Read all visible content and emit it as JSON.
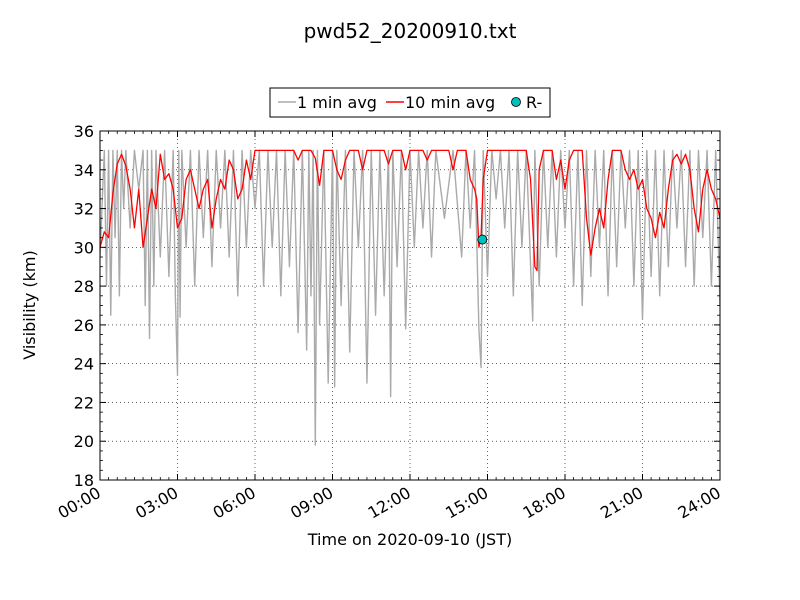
{
  "chart_data": {
    "type": "line",
    "title": "pwd52_20200910.txt",
    "xlabel": "Time on 2020-09-10 (JST)",
    "ylabel": "Visibility (km)",
    "xlim": [
      "00:00",
      "24:00"
    ],
    "ylim": [
      18,
      36
    ],
    "x_ticks": [
      "00:00",
      "03:00",
      "06:00",
      "09:00",
      "12:00",
      "15:00",
      "18:00",
      "21:00",
      "24:00"
    ],
    "y_ticks": [
      18,
      20,
      22,
      24,
      26,
      28,
      30,
      32,
      34,
      36
    ],
    "grid": true,
    "legend_position": "top-center",
    "series": [
      {
        "name": "1 min avg",
        "color": "#aaaaaa",
        "style": "line",
        "points": [
          [
            "00:00",
            29.5
          ],
          [
            "00:10",
            35.0
          ],
          [
            "00:15",
            28.0
          ],
          [
            "00:20",
            35.0
          ],
          [
            "00:25",
            26.5
          ],
          [
            "00:30",
            35.0
          ],
          [
            "00:35",
            30.5
          ],
          [
            "00:40",
            35.0
          ],
          [
            "00:45",
            27.5
          ],
          [
            "00:50",
            35.0
          ],
          [
            "00:55",
            32.0
          ],
          [
            "01:00",
            35.0
          ],
          [
            "01:10",
            31.0
          ],
          [
            "01:20",
            35.0
          ],
          [
            "01:30",
            33.0
          ],
          [
            "01:40",
            35.0
          ],
          [
            "01:45",
            27.0
          ],
          [
            "01:50",
            35.0
          ],
          [
            "01:55",
            25.3
          ],
          [
            "02:00",
            35.0
          ],
          [
            "02:05",
            28.0
          ],
          [
            "02:10",
            35.0
          ],
          [
            "02:20",
            29.5
          ],
          [
            "02:30",
            35.0
          ],
          [
            "02:40",
            28.5
          ],
          [
            "02:50",
            35.0
          ],
          [
            "02:55",
            27.5
          ],
          [
            "03:00",
            23.4
          ],
          [
            "03:03",
            35.0
          ],
          [
            "03:06",
            26.4
          ],
          [
            "03:10",
            35.0
          ],
          [
            "03:20",
            30.0
          ],
          [
            "03:30",
            35.0
          ],
          [
            "03:40",
            28.0
          ],
          [
            "03:50",
            35.0
          ],
          [
            "04:00",
            30.5
          ],
          [
            "04:10",
            35.0
          ],
          [
            "04:20",
            29.0
          ],
          [
            "04:30",
            35.0
          ],
          [
            "04:40",
            31.0
          ],
          [
            "04:50",
            35.0
          ],
          [
            "05:00",
            29.5
          ],
          [
            "05:10",
            35.0
          ],
          [
            "05:20",
            27.5
          ],
          [
            "05:30",
            35.0
          ],
          [
            "05:40",
            30.0
          ],
          [
            "05:50",
            35.0
          ],
          [
            "06:00",
            32.0
          ],
          [
            "06:10",
            35.0
          ],
          [
            "06:20",
            28.0
          ],
          [
            "06:30",
            35.0
          ],
          [
            "06:40",
            30.0
          ],
          [
            "06:50",
            35.0
          ],
          [
            "07:00",
            27.5
          ],
          [
            "07:10",
            35.0
          ],
          [
            "07:20",
            29.0
          ],
          [
            "07:30",
            35.0
          ],
          [
            "07:40",
            25.6
          ],
          [
            "07:50",
            35.0
          ],
          [
            "08:00",
            24.7
          ],
          [
            "08:05",
            35.0
          ],
          [
            "08:10",
            27.5
          ],
          [
            "08:15",
            35.0
          ],
          [
            "08:20",
            19.8
          ],
          [
            "08:25",
            35.0
          ],
          [
            "08:30",
            26.0
          ],
          [
            "08:40",
            35.0
          ],
          [
            "08:50",
            23.0
          ],
          [
            "09:00",
            35.0
          ],
          [
            "09:05",
            22.8
          ],
          [
            "09:10",
            35.0
          ],
          [
            "09:20",
            27.0
          ],
          [
            "09:30",
            35.0
          ],
          [
            "09:40",
            24.6
          ],
          [
            "09:50",
            35.0
          ],
          [
            "10:00",
            30.0
          ],
          [
            "10:10",
            35.0
          ],
          [
            "10:20",
            23.0
          ],
          [
            "10:30",
            35.0
          ],
          [
            "10:40",
            26.5
          ],
          [
            "10:50",
            35.0
          ],
          [
            "11:00",
            27.5
          ],
          [
            "11:10",
            35.0
          ],
          [
            "11:15",
            22.3
          ],
          [
            "11:20",
            35.0
          ],
          [
            "11:30",
            29.0
          ],
          [
            "11:40",
            35.0
          ],
          [
            "11:50",
            25.8
          ],
          [
            "12:00",
            35.0
          ],
          [
            "12:10",
            30.0
          ],
          [
            "12:20",
            35.0
          ],
          [
            "12:30",
            31.0
          ],
          [
            "12:40",
            35.0
          ],
          [
            "12:50",
            29.5
          ],
          [
            "13:00",
            35.0
          ],
          [
            "13:20",
            31.5
          ],
          [
            "13:40",
            35.0
          ],
          [
            "14:00",
            29.5
          ],
          [
            "14:10",
            35.0
          ],
          [
            "14:20",
            31.0
          ],
          [
            "14:30",
            35.0
          ],
          [
            "14:40",
            25.8
          ],
          [
            "14:45",
            23.8
          ],
          [
            "14:50",
            35.0
          ],
          [
            "15:00",
            28.5
          ],
          [
            "15:10",
            35.0
          ],
          [
            "15:20",
            32.5
          ],
          [
            "15:30",
            35.0
          ],
          [
            "15:40",
            31.0
          ],
          [
            "15:50",
            35.0
          ],
          [
            "16:00",
            27.5
          ],
          [
            "16:10",
            35.0
          ],
          [
            "16:20",
            30.0
          ],
          [
            "16:30",
            35.0
          ],
          [
            "16:45",
            26.2
          ],
          [
            "16:50",
            35.0
          ],
          [
            "17:00",
            28.0
          ],
          [
            "17:10",
            35.0
          ],
          [
            "17:20",
            30.0
          ],
          [
            "17:30",
            35.0
          ],
          [
            "17:40",
            29.5
          ],
          [
            "17:50",
            35.0
          ],
          [
            "18:00",
            31.0
          ],
          [
            "18:10",
            35.0
          ],
          [
            "18:20",
            28.0
          ],
          [
            "18:30",
            35.0
          ],
          [
            "18:40",
            27.0
          ],
          [
            "18:50",
            35.0
          ],
          [
            "19:00",
            28.5
          ],
          [
            "19:10",
            35.0
          ],
          [
            "19:20",
            30.0
          ],
          [
            "19:30",
            35.0
          ],
          [
            "19:40",
            27.5
          ],
          [
            "19:50",
            35.0
          ],
          [
            "20:00",
            29.0
          ],
          [
            "20:10",
            35.0
          ],
          [
            "20:20",
            31.0
          ],
          [
            "20:30",
            35.0
          ],
          [
            "20:40",
            28.0
          ],
          [
            "20:50",
            35.0
          ],
          [
            "21:00",
            26.3
          ],
          [
            "21:10",
            35.0
          ],
          [
            "21:20",
            28.5
          ],
          [
            "21:30",
            35.0
          ],
          [
            "21:40",
            27.5
          ],
          [
            "21:50",
            35.0
          ],
          [
            "22:00",
            29.0
          ],
          [
            "22:10",
            35.0
          ],
          [
            "22:20",
            31.0
          ],
          [
            "22:30",
            35.0
          ],
          [
            "22:40",
            29.0
          ],
          [
            "22:50",
            35.0
          ],
          [
            "23:00",
            28.0
          ],
          [
            "23:10",
            35.0
          ],
          [
            "23:20",
            30.5
          ],
          [
            "23:30",
            35.0
          ],
          [
            "23:40",
            28.0
          ],
          [
            "23:50",
            35.0
          ],
          [
            "24:00",
            27.0
          ]
        ]
      },
      {
        "name": "10 min avg",
        "color": "#ff0000",
        "style": "line",
        "points": [
          [
            "00:00",
            30.0
          ],
          [
            "00:10",
            30.8
          ],
          [
            "00:20",
            30.5
          ],
          [
            "00:30",
            32.8
          ],
          [
            "00:40",
            34.3
          ],
          [
            "00:50",
            34.8
          ],
          [
            "01:00",
            34.2
          ],
          [
            "01:10",
            33.0
          ],
          [
            "01:20",
            31.0
          ],
          [
            "01:30",
            33.0
          ],
          [
            "01:40",
            30.0
          ],
          [
            "01:50",
            31.5
          ],
          [
            "02:00",
            33.0
          ],
          [
            "02:10",
            32.0
          ],
          [
            "02:20",
            34.8
          ],
          [
            "02:30",
            33.5
          ],
          [
            "02:40",
            33.8
          ],
          [
            "02:50",
            33.0
          ],
          [
            "03:00",
            31.0
          ],
          [
            "03:10",
            31.5
          ],
          [
            "03:20",
            33.5
          ],
          [
            "03:30",
            34.0
          ],
          [
            "03:40",
            33.0
          ],
          [
            "03:50",
            32.0
          ],
          [
            "04:00",
            33.0
          ],
          [
            "04:10",
            33.5
          ],
          [
            "04:20",
            31.0
          ],
          [
            "04:30",
            32.5
          ],
          [
            "04:40",
            33.5
          ],
          [
            "04:50",
            33.0
          ],
          [
            "05:00",
            34.5
          ],
          [
            "05:10",
            34.0
          ],
          [
            "05:20",
            32.5
          ],
          [
            "05:30",
            33.0
          ],
          [
            "05:40",
            34.5
          ],
          [
            "05:50",
            33.5
          ],
          [
            "06:00",
            35.0
          ],
          [
            "07:30",
            35.0
          ],
          [
            "07:40",
            34.5
          ],
          [
            "07:50",
            35.0
          ],
          [
            "08:10",
            35.0
          ],
          [
            "08:20",
            34.6
          ],
          [
            "08:30",
            33.2
          ],
          [
            "08:40",
            35.0
          ],
          [
            "09:00",
            35.0
          ],
          [
            "09:10",
            34.0
          ],
          [
            "09:20",
            33.5
          ],
          [
            "09:30",
            34.5
          ],
          [
            "09:40",
            35.0
          ],
          [
            "10:00",
            35.0
          ],
          [
            "10:10",
            34.0
          ],
          [
            "10:20",
            35.0
          ],
          [
            "11:00",
            35.0
          ],
          [
            "11:10",
            34.3
          ],
          [
            "11:20",
            35.0
          ],
          [
            "11:40",
            35.0
          ],
          [
            "11:50",
            34.0
          ],
          [
            "12:00",
            35.0
          ],
          [
            "12:30",
            35.0
          ],
          [
            "12:40",
            34.5
          ],
          [
            "12:50",
            35.0
          ],
          [
            "13:30",
            35.0
          ],
          [
            "13:40",
            34.0
          ],
          [
            "13:50",
            35.0
          ],
          [
            "14:10",
            35.0
          ],
          [
            "14:20",
            33.5
          ],
          [
            "14:30",
            33.0
          ],
          [
            "14:35",
            32.5
          ],
          [
            "14:40",
            30.0
          ],
          [
            "14:45",
            30.5
          ],
          [
            "14:50",
            33.5
          ],
          [
            "15:00",
            35.0
          ],
          [
            "16:30",
            35.0
          ],
          [
            "16:40",
            33.5
          ],
          [
            "16:50",
            29.0
          ],
          [
            "16:55",
            28.8
          ],
          [
            "17:00",
            34.0
          ],
          [
            "17:10",
            35.0
          ],
          [
            "17:30",
            35.0
          ],
          [
            "17:40",
            33.5
          ],
          [
            "17:50",
            34.5
          ],
          [
            "18:00",
            33.0
          ],
          [
            "18:10",
            34.5
          ],
          [
            "18:20",
            35.0
          ],
          [
            "18:40",
            35.0
          ],
          [
            "18:50",
            31.5
          ],
          [
            "19:00",
            29.6
          ],
          [
            "19:10",
            31.0
          ],
          [
            "19:20",
            32.0
          ],
          [
            "19:30",
            31.0
          ],
          [
            "19:40",
            33.5
          ],
          [
            "19:50",
            35.0
          ],
          [
            "20:10",
            35.0
          ],
          [
            "20:20",
            34.0
          ],
          [
            "20:30",
            33.5
          ],
          [
            "20:40",
            34.0
          ],
          [
            "20:50",
            33.0
          ],
          [
            "21:00",
            33.5
          ],
          [
            "21:10",
            32.0
          ],
          [
            "21:20",
            31.5
          ],
          [
            "21:30",
            30.5
          ],
          [
            "21:40",
            31.8
          ],
          [
            "21:50",
            31.0
          ],
          [
            "22:00",
            33.0
          ],
          [
            "22:10",
            34.5
          ],
          [
            "22:20",
            34.8
          ],
          [
            "22:30",
            34.3
          ],
          [
            "22:40",
            34.8
          ],
          [
            "22:50",
            34.0
          ],
          [
            "23:00",
            32.0
          ],
          [
            "23:10",
            30.8
          ],
          [
            "23:20",
            33.0
          ],
          [
            "23:30",
            34.0
          ],
          [
            "23:40",
            33.0
          ],
          [
            "23:50",
            32.5
          ],
          [
            "24:00",
            31.5
          ]
        ]
      },
      {
        "name": "R-",
        "color": "#00bfbf",
        "style": "marker",
        "points": [
          [
            "14:48",
            30.4
          ]
        ]
      }
    ]
  }
}
